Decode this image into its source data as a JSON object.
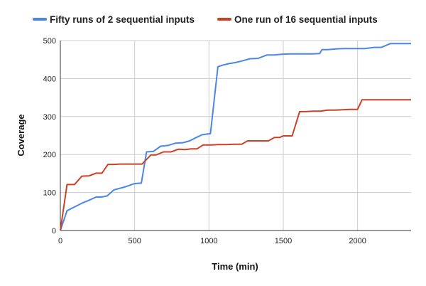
{
  "chart_data": {
    "type": "line",
    "title": "",
    "xlabel": "Time (min)",
    "ylabel": "Coverage",
    "xlim": [
      0,
      2360
    ],
    "ylim": [
      0,
      500
    ],
    "xticks": [
      0,
      500,
      1000,
      1500,
      2000
    ],
    "yticks": [
      0,
      100,
      200,
      300,
      400,
      500
    ],
    "grid": true,
    "legend_position": "top",
    "series": [
      {
        "name": "Fifty runs of 2 sequential inputs",
        "color": "#4a86e8",
        "points": [
          [
            0,
            0
          ],
          [
            45,
            52
          ],
          [
            95,
            62
          ],
          [
            145,
            72
          ],
          [
            195,
            80
          ],
          [
            240,
            88
          ],
          [
            275,
            88
          ],
          [
            315,
            91
          ],
          [
            360,
            107
          ],
          [
            400,
            111
          ],
          [
            445,
            116
          ],
          [
            495,
            123
          ],
          [
            545,
            125
          ],
          [
            580,
            207
          ],
          [
            625,
            208
          ],
          [
            675,
            222
          ],
          [
            725,
            224
          ],
          [
            775,
            230
          ],
          [
            825,
            231
          ],
          [
            870,
            236
          ],
          [
            915,
            245
          ],
          [
            955,
            252
          ],
          [
            1010,
            255
          ],
          [
            1060,
            431
          ],
          [
            1090,
            435
          ],
          [
            1130,
            439
          ],
          [
            1175,
            442
          ],
          [
            1220,
            446
          ],
          [
            1275,
            452
          ],
          [
            1330,
            453
          ],
          [
            1390,
            462
          ],
          [
            1440,
            462
          ],
          [
            1490,
            464
          ],
          [
            1545,
            465
          ],
          [
            1600,
            465
          ],
          [
            1650,
            465
          ],
          [
            1695,
            465
          ],
          [
            1745,
            466
          ],
          [
            1760,
            476
          ],
          [
            1800,
            476
          ],
          [
            1855,
            478
          ],
          [
            1905,
            479
          ],
          [
            1950,
            479
          ],
          [
            2000,
            479
          ],
          [
            2050,
            479
          ],
          [
            2110,
            482
          ],
          [
            2160,
            482
          ],
          [
            2220,
            492
          ],
          [
            2260,
            492
          ],
          [
            2360,
            492
          ]
        ]
      },
      {
        "name": "One run of 16 sequential inputs",
        "color": "#cc4125",
        "points": [
          [
            0,
            0
          ],
          [
            45,
            121
          ],
          [
            95,
            121
          ],
          [
            145,
            143
          ],
          [
            195,
            144
          ],
          [
            240,
            151
          ],
          [
            280,
            151
          ],
          [
            320,
            174
          ],
          [
            360,
            174
          ],
          [
            400,
            175
          ],
          [
            445,
            175
          ],
          [
            495,
            175
          ],
          [
            550,
            175
          ],
          [
            610,
            199
          ],
          [
            645,
            199
          ],
          [
            695,
            207
          ],
          [
            745,
            207
          ],
          [
            795,
            214
          ],
          [
            840,
            213
          ],
          [
            880,
            215
          ],
          [
            920,
            215
          ],
          [
            960,
            225
          ],
          [
            1010,
            225
          ],
          [
            1060,
            226
          ],
          [
            1115,
            226
          ],
          [
            1170,
            227
          ],
          [
            1220,
            227
          ],
          [
            1260,
            236
          ],
          [
            1310,
            236
          ],
          [
            1360,
            236
          ],
          [
            1400,
            236
          ],
          [
            1440,
            245
          ],
          [
            1475,
            245
          ],
          [
            1500,
            249
          ],
          [
            1560,
            249
          ],
          [
            1610,
            313
          ],
          [
            1650,
            313
          ],
          [
            1700,
            314
          ],
          [
            1750,
            314
          ],
          [
            1800,
            317
          ],
          [
            1850,
            317
          ],
          [
            1900,
            318
          ],
          [
            1950,
            319
          ],
          [
            2000,
            319
          ],
          [
            2030,
            344
          ],
          [
            2100,
            344
          ],
          [
            2150,
            344
          ],
          [
            2200,
            344
          ],
          [
            2360,
            344
          ]
        ]
      }
    ]
  }
}
